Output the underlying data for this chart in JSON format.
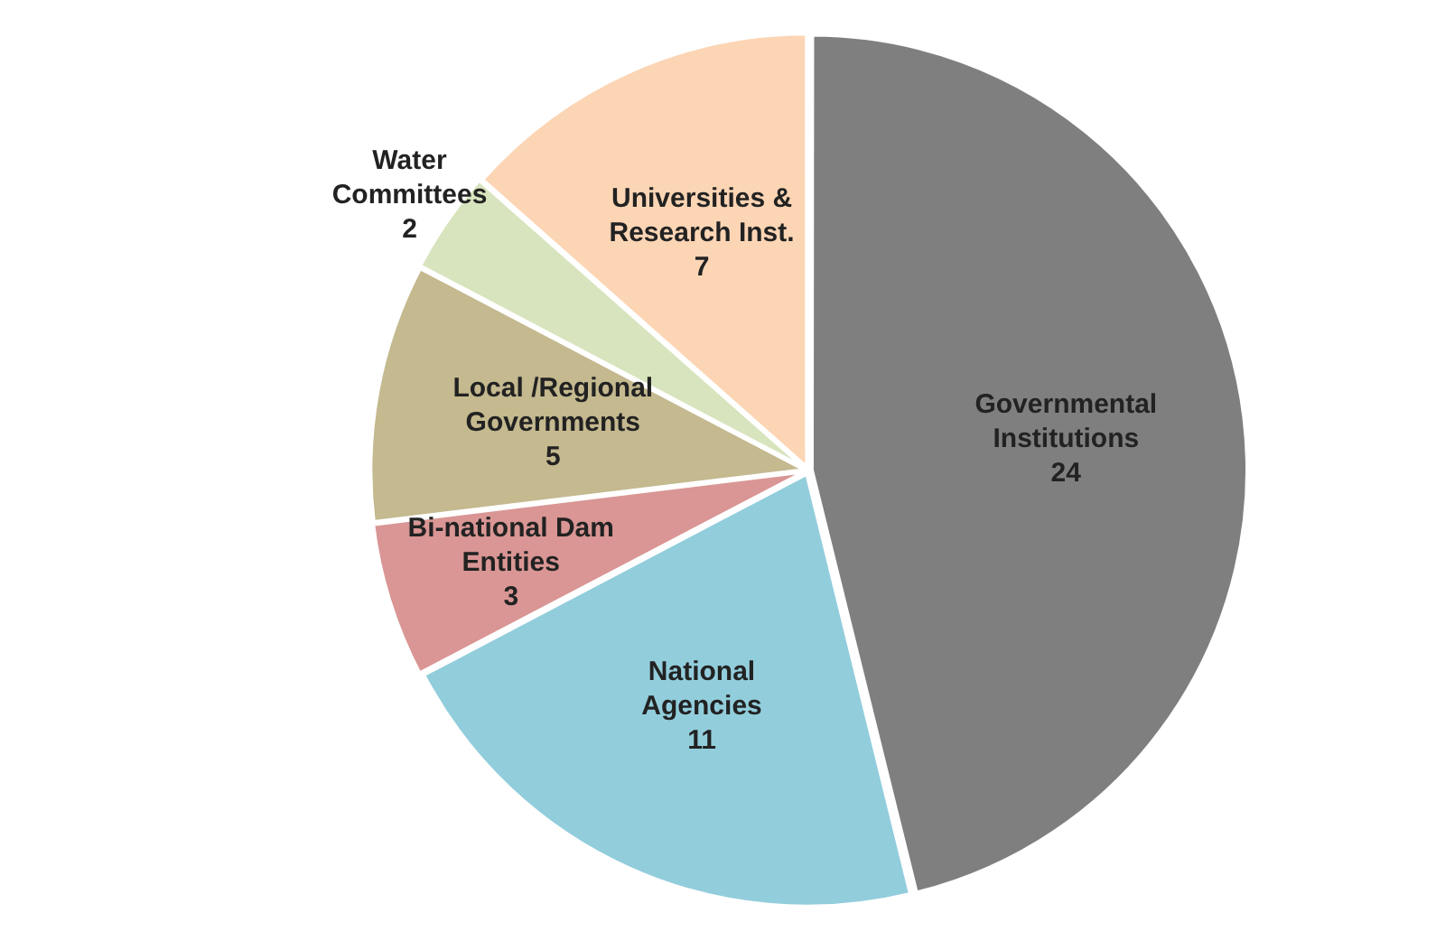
{
  "chart_data": {
    "type": "pie",
    "categories": [
      "Governmental Institutions",
      "National Agencies",
      "Bi-national Dam Entities",
      "Local /Regional Governments",
      "Water Committees",
      "Universities & Research Inst."
    ],
    "values": [
      24,
      11,
      3,
      5,
      2,
      7
    ],
    "colors": [
      "#7f7f7f",
      "#92cddc",
      "#d99694",
      "#c4b98f",
      "#d7e4bd",
      "#fcd5b5"
    ],
    "data_labels": true,
    "legend": false
  }
}
